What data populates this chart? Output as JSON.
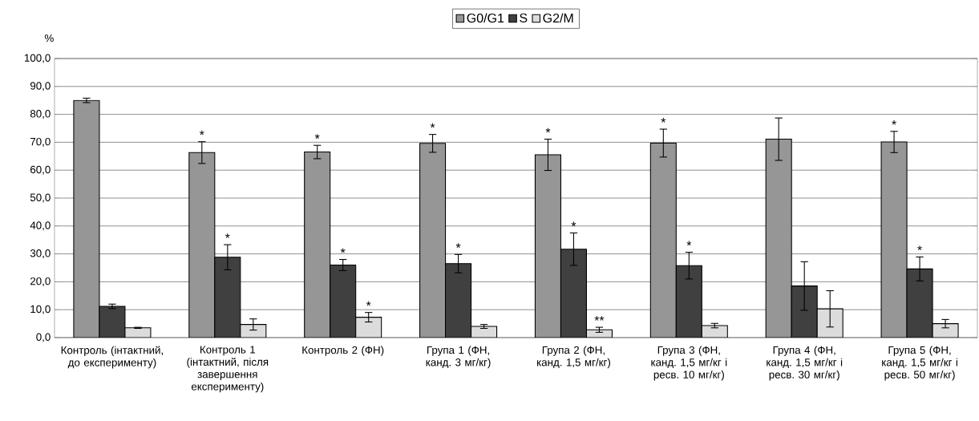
{
  "chart_data": {
    "type": "bar",
    "ylabel": "%",
    "categories": [
      "Контроль (інтактний, до експерименту)",
      "Контроль 1 (інтактний, після завершення експерименту)",
      "Контроль 2 (ФН)",
      "Група 1 (ФН, канд. 3 мг/кг)",
      "Група 2 (ФН, канд. 1,5 мг/кг)",
      "Група 3 (ФН, канд. 1,5 мг/кг і ресв. 10 мг/кг)",
      "Група 4 (ФН, канд. 1,5 мг/кг і ресв. 30 мг/кг)",
      "Група 5 (ФН, канд. 1,5 мг/кг і ресв. 50 мг/кг)"
    ],
    "series": [
      {
        "name": "G0/G1",
        "color": "#969696",
        "values": [
          85.0,
          66.3,
          66.5,
          69.6,
          65.5,
          69.7,
          71.1,
          70.1
        ],
        "errors": [
          0.8,
          3.9,
          2.4,
          3.2,
          5.6,
          5.0,
          7.6,
          3.8
        ],
        "value_labels": [
          null,
          "*",
          "*",
          "*",
          "*",
          "*",
          null,
          "*"
        ]
      },
      {
        "name": "S",
        "color": "#404040",
        "values": [
          11.2,
          28.8,
          26.0,
          26.5,
          31.7,
          25.8,
          18.5,
          24.6
        ],
        "errors": [
          0.8,
          4.5,
          2.0,
          3.3,
          5.8,
          4.8,
          8.7,
          4.3
        ],
        "value_labels": [
          null,
          "*",
          "*",
          "*",
          "*",
          "*",
          null,
          "*"
        ]
      },
      {
        "name": "G2/M",
        "color": "#dcdcdc",
        "values": [
          3.5,
          4.7,
          7.3,
          4.0,
          2.8,
          4.3,
          10.3,
          5.0
        ],
        "errors": [
          0.2,
          2.0,
          1.7,
          0.7,
          0.9,
          0.8,
          6.5,
          1.5
        ],
        "value_labels": [
          null,
          null,
          "*",
          null,
          "**",
          null,
          null,
          null
        ]
      }
    ],
    "ylim": [
      0,
      100
    ],
    "yticks": [
      {
        "value": 0,
        "label": "0,0"
      },
      {
        "value": 10,
        "label": "10,0"
      },
      {
        "value": 20,
        "label": "20,0"
      },
      {
        "value": 30,
        "label": "30,0"
      },
      {
        "value": 40,
        "label": "40,0"
      },
      {
        "value": 50,
        "label": "50,0"
      },
      {
        "value": 60,
        "label": "60,0"
      },
      {
        "value": 70,
        "label": "70,0"
      },
      {
        "value": 80,
        "label": "80,0"
      },
      {
        "value": 90,
        "label": "90,0"
      },
      {
        "value": 100,
        "label": "100,0"
      }
    ],
    "grid": "y",
    "legend": "top"
  }
}
